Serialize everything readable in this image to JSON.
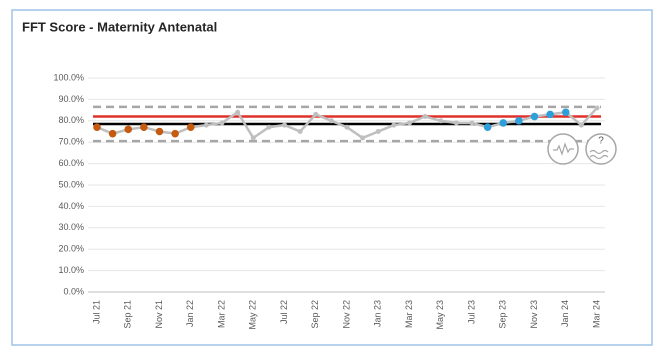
{
  "chart_data": {
    "type": "line",
    "title": "FFT Score - Maternity Antenatal",
    "categories": [
      "Jul 21",
      null,
      "Sep 21",
      null,
      "Nov 21",
      null,
      "Jan 22",
      null,
      "Mar 22",
      null,
      "May 22",
      null,
      "Jul 22",
      null,
      "Sep 22",
      null,
      "Nov 22",
      null,
      "Jan 23",
      null,
      "Mar 23",
      null,
      "May 23",
      null,
      "Jul 23",
      null,
      "Sep 23",
      null,
      "Nov 23",
      null,
      "Jan 24",
      null,
      "Mar 24"
    ],
    "series": [
      {
        "color": "#bfbfbf",
        "values": [
          77,
          74,
          76,
          77,
          75,
          74,
          77,
          78,
          79,
          84,
          72,
          77,
          78,
          75,
          83,
          80,
          77,
          72,
          75,
          78,
          79,
          82,
          80,
          79,
          79,
          77,
          79,
          80,
          82,
          83,
          84,
          78,
          86
        ],
        "marker_colors": [
          "#c55a11",
          "#c55a11",
          "#c55a11",
          "#c55a11",
          "#c55a11",
          "#c55a11",
          "#c55a11",
          "#bfbfbf",
          "#bfbfbf",
          "#bfbfbf",
          "#bfbfbf",
          "#bfbfbf",
          "#bfbfbf",
          "#bfbfbf",
          "#bfbfbf",
          "#bfbfbf",
          "#bfbfbf",
          "#bfbfbf",
          "#bfbfbf",
          "#bfbfbf",
          "#bfbfbf",
          "#bfbfbf",
          "#bfbfbf",
          "#bfbfbf",
          "#bfbfbf",
          "#2e9fd8",
          "#2e9fd8",
          "#2e9fd8",
          "#2e9fd8",
          "#2e9fd8",
          "#2e9fd8",
          "#bfbfbf",
          "#bfbfbf"
        ]
      }
    ],
    "reference_lines": [
      {
        "value": 86.5,
        "color": "#a6a6a6",
        "dashed": true
      },
      {
        "value": 82,
        "color": "#e0302a",
        "dashed": false
      },
      {
        "value": 78.5,
        "color": "#000000",
        "dashed": false
      },
      {
        "value": 70.5,
        "color": "#a6a6a6",
        "dashed": true
      }
    ],
    "ylim": [
      0,
      100
    ],
    "yticks": [
      {
        "value": 0,
        "label": "0.0%"
      },
      {
        "value": 10,
        "label": "10.0%"
      },
      {
        "value": 20,
        "label": "20.0%"
      },
      {
        "value": 30,
        "label": "30.0%"
      },
      {
        "value": 40,
        "label": "40.0%"
      },
      {
        "value": 50,
        "label": "50.0%"
      },
      {
        "value": 60,
        "label": "60.0%"
      },
      {
        "value": 70,
        "label": "70.0%"
      },
      {
        "value": 80,
        "label": "80.0%"
      },
      {
        "value": 90,
        "label": "90.0%"
      },
      {
        "value": 100,
        "label": "100.0%"
      }
    ],
    "grid": true,
    "assurance_icon_text": "?"
  }
}
